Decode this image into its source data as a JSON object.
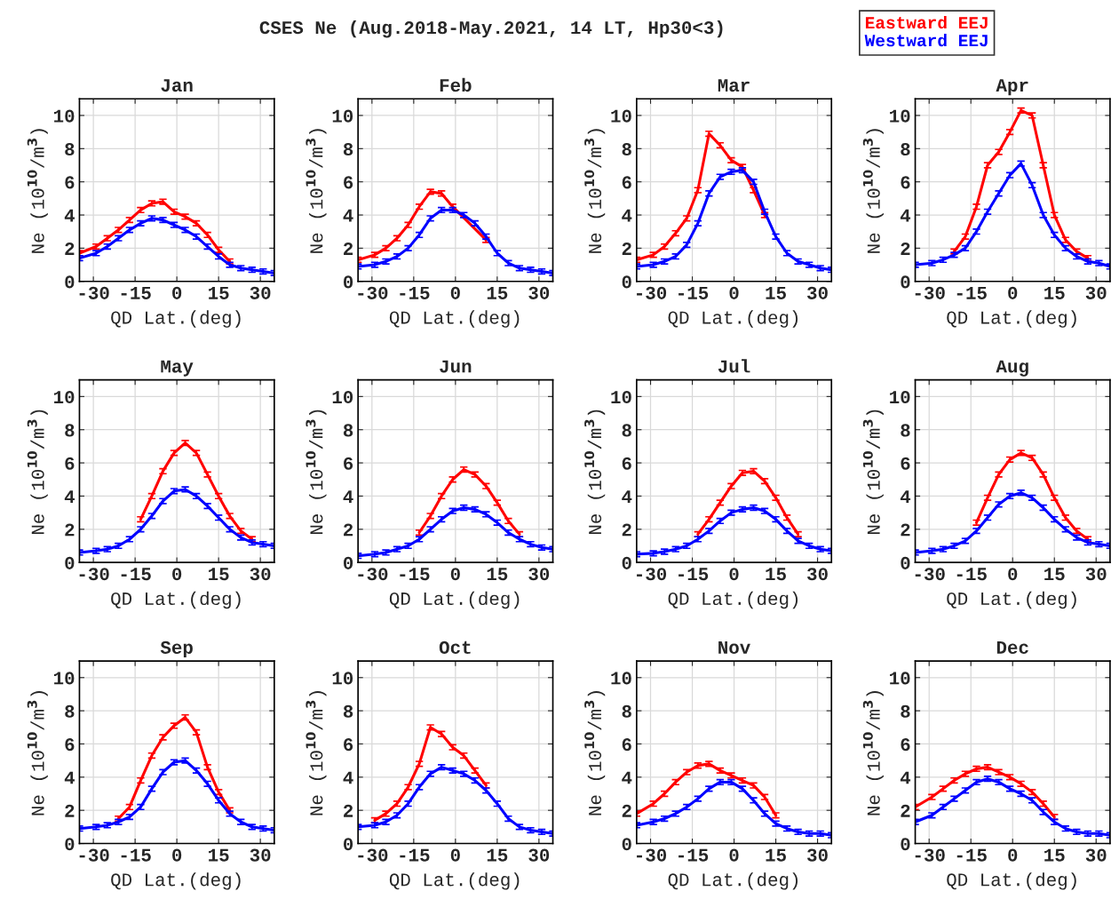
{
  "chart_data": [
    {
      "type": "line",
      "title": "Jan",
      "xlabel": "QD Lat.(deg)",
      "ylabel": "Ne (10$^{10}$/m$^{3}$)",
      "annotations": [
        "CSES Ne (Aug.2018-May.2021, 14 LT, Hp30<3)"
      ],
      "x": [
        -35,
        -29,
        -25,
        -21,
        -17,
        -13,
        -9,
        -5,
        -1,
        3,
        7,
        11,
        15,
        19,
        23,
        27,
        31,
        35
      ],
      "xlim": [
        -35,
        35
      ],
      "xticks": [
        -30,
        -15,
        0,
        15,
        30
      ],
      "ylim": [
        0,
        11
      ],
      "yticks": [
        0,
        2,
        4,
        6,
        8,
        10
      ],
      "grid": true,
      "marker": "none",
      "line_style": "solid",
      "series": [
        {
          "color": "#ff0000",
          "values": [
            1.7,
            2.1,
            2.6,
            3.1,
            3.7,
            4.3,
            4.7,
            4.8,
            4.2,
            3.9,
            3.5,
            2.8,
            1.9,
            1.2,
            null,
            null,
            null,
            null
          ],
          "errors": [
            0.15,
            0.15,
            0.15,
            0.15,
            0.15,
            0.15,
            0.15,
            0.15,
            0.15,
            0.15,
            0.15,
            0.15,
            0.15,
            0.15,
            null,
            null,
            null,
            null
          ]
        },
        {
          "color": "#0000ff",
          "values": [
            1.4,
            1.7,
            2.1,
            2.6,
            3.1,
            3.5,
            3.8,
            3.7,
            3.4,
            3.1,
            2.7,
            2.1,
            1.5,
            1.0,
            0.8,
            0.7,
            0.6,
            0.5
          ],
          "errors": [
            0.15,
            0.15,
            0.15,
            0.15,
            0.15,
            0.15,
            0.15,
            0.15,
            0.15,
            0.15,
            0.15,
            0.15,
            0.15,
            0.15,
            0.15,
            0.15,
            0.15,
            0.15
          ]
        }
      ]
    },
    {
      "type": "line",
      "title": "Feb",
      "xlabel": "QD Lat.(deg)",
      "ylabel": "Ne (10$^{10}$/m$^{3}$)",
      "x": [
        -35,
        -29,
        -25,
        -21,
        -17,
        -13,
        -9,
        -5,
        -1,
        3,
        7,
        11,
        15,
        19,
        23,
        27,
        31,
        35
      ],
      "xlim": [
        -35,
        35
      ],
      "xticks": [
        -30,
        -15,
        0,
        15,
        30
      ],
      "ylim": [
        0,
        11
      ],
      "yticks": [
        0,
        2,
        4,
        6,
        8,
        10
      ],
      "grid": true,
      "marker": "none",
      "line_style": "solid",
      "series": [
        {
          "color": "#ff0000",
          "values": [
            1.3,
            1.6,
            2.0,
            2.6,
            3.4,
            4.5,
            5.4,
            5.3,
            4.5,
            null,
            null,
            2.5,
            null,
            null,
            null,
            null,
            null,
            null
          ],
          "errors": [
            0.15,
            0.15,
            0.15,
            0.15,
            0.15,
            0.15,
            0.15,
            0.15,
            0.15,
            null,
            null,
            0.15,
            null,
            null,
            null,
            null,
            null,
            null
          ]
        },
        {
          "color": "#0000ff",
          "values": [
            0.9,
            1.0,
            1.2,
            1.5,
            2.0,
            2.8,
            3.8,
            4.3,
            4.3,
            4.0,
            3.5,
            2.7,
            1.7,
            1.1,
            0.8,
            0.7,
            0.6,
            0.5
          ],
          "errors": [
            0.15,
            0.15,
            0.15,
            0.15,
            0.15,
            0.15,
            0.15,
            0.15,
            0.15,
            0.15,
            0.15,
            0.15,
            0.15,
            0.15,
            0.15,
            0.15,
            0.15,
            0.15
          ]
        }
      ]
    },
    {
      "type": "line",
      "title": "Mar",
      "xlabel": "QD Lat.(deg)",
      "ylabel": "Ne (10$^{10}$/m$^{3}$)",
      "x": [
        -35,
        -29,
        -25,
        -21,
        -17,
        -13,
        -9,
        -5,
        -1,
        3,
        7,
        11,
        15,
        19,
        23,
        27,
        31,
        35
      ],
      "xlim": [
        -35,
        35
      ],
      "xticks": [
        -30,
        -15,
        0,
        15,
        30
      ],
      "ylim": [
        0,
        11
      ],
      "yticks": [
        0,
        2,
        4,
        6,
        8,
        10
      ],
      "grid": true,
      "marker": "none",
      "line_style": "solid",
      "series": [
        {
          "color": "#ff0000",
          "values": [
            1.3,
            1.6,
            2.1,
            2.9,
            3.8,
            5.5,
            8.9,
            8.2,
            7.3,
            6.9,
            5.5,
            4.0,
            null,
            null,
            null,
            null,
            null,
            null
          ],
          "errors": [
            0.15,
            0.15,
            0.15,
            0.15,
            0.15,
            0.15,
            0.15,
            0.15,
            0.15,
            0.15,
            0.15,
            0.15,
            null,
            null,
            null,
            null,
            null,
            null
          ]
        },
        {
          "color": "#0000ff",
          "values": [
            0.9,
            1.0,
            1.2,
            1.5,
            2.2,
            3.5,
            5.3,
            6.3,
            6.6,
            6.7,
            6.0,
            4.2,
            2.7,
            1.7,
            1.2,
            1.0,
            0.8,
            0.7
          ],
          "errors": [
            0.15,
            0.15,
            0.15,
            0.15,
            0.15,
            0.15,
            0.15,
            0.15,
            0.15,
            0.15,
            0.15,
            0.15,
            0.15,
            0.15,
            0.15,
            0.15,
            0.15,
            0.15
          ]
        }
      ]
    },
    {
      "type": "line",
      "title": "Apr",
      "xlabel": "QD Lat.(deg)",
      "ylabel": "Ne (10$^{10}$/m$^{3}$)",
      "x": [
        -35,
        -29,
        -25,
        -21,
        -17,
        -13,
        -9,
        -5,
        -1,
        3,
        7,
        11,
        15,
        19,
        23,
        27,
        31,
        35
      ],
      "xlim": [
        -35,
        35
      ],
      "xticks": [
        -30,
        -15,
        0,
        15,
        30
      ],
      "ylim": [
        0,
        11
      ],
      "yticks": [
        0,
        2,
        4,
        6,
        8,
        10
      ],
      "grid": true,
      "marker": "none",
      "line_style": "solid",
      "legend": "top left",
      "series": [
        {
          "name": "Eastward EEJ",
          "color": "#ff0000",
          "values": [
            null,
            null,
            null,
            1.8,
            2.7,
            4.5,
            7.0,
            7.8,
            9.0,
            10.3,
            10.0,
            7.0,
            4.0,
            2.5,
            1.8,
            1.4,
            null,
            null
          ],
          "errors": [
            null,
            null,
            null,
            0.15,
            0.15,
            0.15,
            0.15,
            0.15,
            0.15,
            0.15,
            0.15,
            0.15,
            0.15,
            0.15,
            0.15,
            0.15,
            null,
            null
          ]
        },
        {
          "name": "Westward EEJ",
          "color": "#0000ff",
          "values": [
            1.0,
            1.1,
            1.3,
            1.6,
            2.0,
            3.0,
            4.2,
            5.3,
            6.4,
            7.1,
            5.8,
            4.0,
            2.8,
            2.0,
            1.5,
            1.2,
            1.1,
            0.9
          ],
          "errors": [
            0.15,
            0.15,
            0.15,
            0.15,
            0.15,
            0.15,
            0.15,
            0.15,
            0.15,
            0.15,
            0.15,
            0.15,
            0.15,
            0.15,
            0.15,
            0.15,
            0.15,
            0.15
          ]
        }
      ]
    },
    {
      "type": "line",
      "title": "May",
      "xlabel": "QD Lat.(deg)",
      "ylabel": "Ne (10$^{10}$/m$^{3}$)",
      "x": [
        -35,
        -29,
        -25,
        -21,
        -17,
        -13,
        -9,
        -5,
        -1,
        3,
        7,
        11,
        15,
        19,
        23,
        27,
        31,
        35
      ],
      "xlim": [
        -35,
        35
      ],
      "xticks": [
        -30,
        -15,
        0,
        15,
        30
      ],
      "ylim": [
        0,
        11
      ],
      "yticks": [
        0,
        2,
        4,
        6,
        8,
        10
      ],
      "grid": true,
      "marker": "none",
      "line_style": "solid",
      "series": [
        {
          "color": "#ff0000",
          "values": [
            null,
            null,
            null,
            null,
            null,
            2.6,
            4.0,
            5.5,
            6.6,
            7.2,
            6.6,
            5.3,
            4.0,
            2.8,
            1.9,
            1.4,
            null,
            null
          ],
          "errors": [
            null,
            null,
            null,
            null,
            null,
            0.15,
            0.15,
            0.15,
            0.15,
            0.15,
            0.15,
            0.15,
            0.15,
            0.15,
            0.15,
            0.15,
            null,
            null
          ]
        },
        {
          "color": "#0000ff",
          "values": [
            0.6,
            0.7,
            0.8,
            1.0,
            1.4,
            2.0,
            2.8,
            3.7,
            4.3,
            4.4,
            4.0,
            3.4,
            2.7,
            2.0,
            1.5,
            1.2,
            1.1,
            1.0
          ],
          "errors": [
            0.15,
            0.15,
            0.15,
            0.15,
            0.15,
            0.15,
            0.15,
            0.15,
            0.15,
            0.15,
            0.15,
            0.15,
            0.15,
            0.15,
            0.15,
            0.15,
            0.15,
            0.15
          ]
        }
      ]
    },
    {
      "type": "line",
      "title": "Jun",
      "xlabel": "QD Lat.(deg)",
      "ylabel": "Ne (10$^{10}$/m$^{3}$)",
      "x": [
        -35,
        -29,
        -25,
        -21,
        -17,
        -13,
        -9,
        -5,
        -1,
        3,
        7,
        11,
        15,
        19,
        23,
        27,
        31,
        35
      ],
      "xlim": [
        -35,
        35
      ],
      "xticks": [
        -30,
        -15,
        0,
        15,
        30
      ],
      "ylim": [
        0,
        11
      ],
      "yticks": [
        0,
        2,
        4,
        6,
        8,
        10
      ],
      "grid": true,
      "marker": "none",
      "line_style": "solid",
      "series": [
        {
          "color": "#ff0000",
          "values": [
            null,
            null,
            null,
            null,
            null,
            1.8,
            2.8,
            4.0,
            5.0,
            5.6,
            5.3,
            4.6,
            3.6,
            2.5,
            1.7,
            null,
            null,
            null
          ],
          "errors": [
            null,
            null,
            null,
            null,
            null,
            0.15,
            0.15,
            0.15,
            0.15,
            0.15,
            0.15,
            0.15,
            0.15,
            0.15,
            0.15,
            null,
            null,
            null
          ]
        },
        {
          "color": "#0000ff",
          "values": [
            0.4,
            0.5,
            0.6,
            0.8,
            1.0,
            1.4,
            2.0,
            2.6,
            3.1,
            3.3,
            3.2,
            2.9,
            2.4,
            1.8,
            1.4,
            1.1,
            0.9,
            0.8
          ],
          "errors": [
            0.15,
            0.15,
            0.15,
            0.15,
            0.15,
            0.15,
            0.15,
            0.15,
            0.15,
            0.15,
            0.15,
            0.15,
            0.15,
            0.15,
            0.15,
            0.15,
            0.15,
            0.15
          ]
        }
      ]
    },
    {
      "type": "line",
      "title": "Jul",
      "xlabel": "QD Lat.(deg)",
      "ylabel": "Ne (10$^{10}$/m$^{3}$)",
      "x": [
        -35,
        -29,
        -25,
        -21,
        -17,
        -13,
        -9,
        -5,
        -1,
        3,
        7,
        11,
        15,
        19,
        23,
        27,
        31,
        35
      ],
      "xlim": [
        -35,
        35
      ],
      "xticks": [
        -30,
        -15,
        0,
        15,
        30
      ],
      "ylim": [
        0,
        11
      ],
      "yticks": [
        0,
        2,
        4,
        6,
        8,
        10
      ],
      "grid": true,
      "marker": "none",
      "line_style": "solid",
      "series": [
        {
          "color": "#ff0000",
          "values": [
            null,
            null,
            null,
            null,
            null,
            1.7,
            2.6,
            3.6,
            4.6,
            5.4,
            5.5,
            4.9,
            3.9,
            2.7,
            1.7,
            null,
            null,
            null
          ],
          "errors": [
            null,
            null,
            null,
            null,
            null,
            0.15,
            0.15,
            0.15,
            0.15,
            0.15,
            0.15,
            0.15,
            0.15,
            0.15,
            0.15,
            null,
            null,
            null
          ]
        },
        {
          "color": "#0000ff",
          "values": [
            0.5,
            0.55,
            0.65,
            0.8,
            1.0,
            1.4,
            1.9,
            2.5,
            3.0,
            3.2,
            3.3,
            3.1,
            2.6,
            1.9,
            1.3,
            1.0,
            0.8,
            0.7
          ],
          "errors": [
            0.15,
            0.15,
            0.15,
            0.15,
            0.15,
            0.15,
            0.15,
            0.15,
            0.15,
            0.15,
            0.15,
            0.15,
            0.15,
            0.15,
            0.15,
            0.15,
            0.15,
            0.15
          ]
        }
      ]
    },
    {
      "type": "line",
      "title": "Aug",
      "xlabel": "QD Lat.(deg)",
      "ylabel": "Ne (10$^{10}$/m$^{3}$)",
      "x": [
        -35,
        -29,
        -25,
        -21,
        -17,
        -13,
        -9,
        -5,
        -1,
        3,
        7,
        11,
        15,
        19,
        23,
        27,
        31,
        35
      ],
      "xlim": [
        -35,
        35
      ],
      "xticks": [
        -30,
        -15,
        0,
        15,
        30
      ],
      "ylim": [
        0,
        11
      ],
      "yticks": [
        0,
        2,
        4,
        6,
        8,
        10
      ],
      "grid": true,
      "marker": "none",
      "line_style": "solid",
      "series": [
        {
          "color": "#ff0000",
          "values": [
            null,
            null,
            null,
            null,
            null,
            2.4,
            3.9,
            5.3,
            6.2,
            6.6,
            6.3,
            5.3,
            3.9,
            2.7,
            1.9,
            1.4,
            null,
            null
          ],
          "errors": [
            null,
            null,
            null,
            null,
            null,
            0.15,
            0.15,
            0.15,
            0.15,
            0.15,
            0.15,
            0.15,
            0.15,
            0.15,
            0.15,
            0.15,
            null,
            null
          ]
        },
        {
          "color": "#0000ff",
          "values": [
            0.6,
            0.7,
            0.8,
            1.0,
            1.3,
            1.9,
            2.7,
            3.5,
            4.0,
            4.2,
            3.9,
            3.3,
            2.6,
            2.0,
            1.5,
            1.2,
            1.1,
            1.0
          ],
          "errors": [
            0.15,
            0.15,
            0.15,
            0.15,
            0.15,
            0.15,
            0.15,
            0.15,
            0.15,
            0.15,
            0.15,
            0.15,
            0.15,
            0.15,
            0.15,
            0.15,
            0.15,
            0.15
          ]
        }
      ]
    },
    {
      "type": "line",
      "title": "Sep",
      "xlabel": "QD Lat.(deg)",
      "ylabel": "Ne (10$^{10}$/m$^{3}$)",
      "x": [
        -35,
        -29,
        -25,
        -21,
        -17,
        -13,
        -9,
        -5,
        -1,
        3,
        7,
        11,
        15,
        19,
        23,
        27,
        31,
        35
      ],
      "xlim": [
        -35,
        35
      ],
      "xticks": [
        -30,
        -15,
        0,
        15,
        30
      ],
      "ylim": [
        0,
        11
      ],
      "yticks": [
        0,
        2,
        4,
        6,
        8,
        10
      ],
      "grid": true,
      "marker": "none",
      "line_style": "solid",
      "series": [
        {
          "color": "#ff0000",
          "values": [
            null,
            null,
            null,
            1.5,
            2.2,
            3.8,
            5.3,
            6.4,
            7.1,
            7.6,
            6.7,
            4.6,
            3.1,
            2.0,
            null,
            null,
            null,
            null
          ],
          "errors": [
            null,
            null,
            null,
            0.15,
            0.15,
            0.15,
            0.15,
            0.15,
            0.15,
            0.15,
            0.15,
            0.15,
            0.15,
            0.15,
            null,
            null,
            null,
            null
          ]
        },
        {
          "color": "#0000ff",
          "values": [
            0.9,
            1.0,
            1.1,
            1.3,
            1.6,
            2.2,
            3.3,
            4.3,
            4.9,
            5.0,
            4.4,
            3.6,
            2.6,
            1.8,
            1.3,
            1.0,
            0.9,
            0.8
          ],
          "errors": [
            0.15,
            0.15,
            0.15,
            0.15,
            0.15,
            0.15,
            0.15,
            0.15,
            0.15,
            0.15,
            0.15,
            0.15,
            0.15,
            0.15,
            0.15,
            0.15,
            0.15,
            0.15
          ]
        }
      ]
    },
    {
      "type": "line",
      "title": "Oct",
      "xlabel": "QD Lat.(deg)",
      "ylabel": "Ne (10$^{10}$/m$^{3}$)",
      "x": [
        -35,
        -29,
        -25,
        -21,
        -17,
        -13,
        -9,
        -5,
        -1,
        3,
        7,
        11,
        15,
        19,
        23,
        27,
        31,
        35
      ],
      "xlim": [
        -35,
        35
      ],
      "xticks": [
        -30,
        -15,
        0,
        15,
        30
      ],
      "ylim": [
        0,
        11
      ],
      "yticks": [
        0,
        2,
        4,
        6,
        8,
        10
      ],
      "grid": true,
      "marker": "none",
      "line_style": "solid",
      "series": [
        {
          "color": "#ff0000",
          "values": [
            null,
            1.4,
            1.8,
            2.4,
            3.4,
            4.8,
            7.0,
            6.6,
            5.8,
            5.3,
            4.4,
            3.5,
            null,
            null,
            null,
            null,
            null,
            null
          ],
          "errors": [
            null,
            0.15,
            0.15,
            0.15,
            0.15,
            0.15,
            0.15,
            0.15,
            0.15,
            0.15,
            0.15,
            0.15,
            null,
            null,
            null,
            null,
            null,
            null
          ]
        },
        {
          "color": "#0000ff",
          "values": [
            1.0,
            1.1,
            1.3,
            1.7,
            2.4,
            3.4,
            4.2,
            4.6,
            4.4,
            4.2,
            3.8,
            3.2,
            2.4,
            1.5,
            1.0,
            0.8,
            0.7,
            0.6
          ],
          "errors": [
            0.15,
            0.15,
            0.15,
            0.15,
            0.15,
            0.15,
            0.15,
            0.15,
            0.15,
            0.15,
            0.15,
            0.15,
            0.15,
            0.15,
            0.15,
            0.15,
            0.15,
            0.15
          ]
        }
      ]
    },
    {
      "type": "line",
      "title": "Nov",
      "xlabel": "QD Lat.(deg)",
      "ylabel": "Ne (10$^{10}$/m$^{3}$)",
      "x": [
        -35,
        -29,
        -25,
        -21,
        -17,
        -13,
        -9,
        -5,
        -1,
        3,
        7,
        11,
        15,
        19,
        23,
        27,
        31,
        35
      ],
      "xlim": [
        -35,
        35
      ],
      "xticks": [
        -30,
        -15,
        0,
        15,
        30
      ],
      "ylim": [
        0,
        11
      ],
      "yticks": [
        0,
        2,
        4,
        6,
        8,
        10
      ],
      "grid": true,
      "marker": "none",
      "line_style": "solid",
      "series": [
        {
          "color": "#ff0000",
          "values": [
            1.8,
            2.4,
            3.0,
            3.7,
            4.3,
            4.7,
            4.8,
            4.4,
            4.1,
            3.8,
            3.5,
            2.8,
            1.7,
            null,
            null,
            null,
            null,
            null
          ],
          "errors": [
            0.15,
            0.15,
            0.15,
            0.15,
            0.15,
            0.15,
            0.15,
            0.15,
            0.15,
            0.15,
            0.15,
            0.15,
            0.15,
            null,
            null,
            null,
            null,
            null
          ]
        },
        {
          "color": "#0000ff",
          "values": [
            1.1,
            1.3,
            1.5,
            1.8,
            2.2,
            2.7,
            3.3,
            3.7,
            3.7,
            3.3,
            2.6,
            1.8,
            1.2,
            0.9,
            0.7,
            0.6,
            0.6,
            0.5
          ],
          "errors": [
            0.15,
            0.15,
            0.15,
            0.15,
            0.15,
            0.15,
            0.15,
            0.15,
            0.15,
            0.15,
            0.15,
            0.15,
            0.15,
            0.15,
            0.15,
            0.15,
            0.15,
            0.15
          ]
        }
      ]
    },
    {
      "type": "line",
      "title": "Dec",
      "xlabel": "QD Lat.(deg)",
      "ylabel": "Ne (10$^{10}$/m$^{3}$)",
      "x": [
        -35,
        -29,
        -25,
        -21,
        -17,
        -13,
        -9,
        -5,
        -1,
        3,
        7,
        11,
        15,
        19,
        23,
        27,
        31,
        35
      ],
      "xlim": [
        -35,
        35
      ],
      "xticks": [
        -30,
        -15,
        0,
        15,
        30
      ],
      "ylim": [
        0,
        11
      ],
      "yticks": [
        0,
        2,
        4,
        6,
        8,
        10
      ],
      "grid": true,
      "marker": "none",
      "line_style": "solid",
      "series": [
        {
          "color": "#ff0000",
          "values": [
            2.2,
            2.8,
            3.3,
            3.8,
            4.2,
            4.5,
            4.6,
            4.3,
            4.0,
            3.6,
            3.1,
            2.4,
            1.6,
            null,
            null,
            null,
            null,
            null
          ],
          "errors": [
            0.15,
            0.15,
            0.15,
            0.15,
            0.15,
            0.15,
            0.15,
            0.15,
            0.15,
            0.15,
            0.15,
            0.15,
            0.15,
            null,
            null,
            null,
            null,
            null
          ]
        },
        {
          "color": "#0000ff",
          "values": [
            1.3,
            1.7,
            2.2,
            2.7,
            3.2,
            3.7,
            3.9,
            3.7,
            3.3,
            3.0,
            2.6,
            1.9,
            1.3,
            0.9,
            0.7,
            0.6,
            0.6,
            0.5
          ],
          "errors": [
            0.15,
            0.15,
            0.15,
            0.15,
            0.15,
            0.15,
            0.15,
            0.15,
            0.15,
            0.15,
            0.15,
            0.15,
            0.15,
            0.15,
            0.15,
            0.15,
            0.15,
            0.15
          ]
        }
      ]
    }
  ]
}
